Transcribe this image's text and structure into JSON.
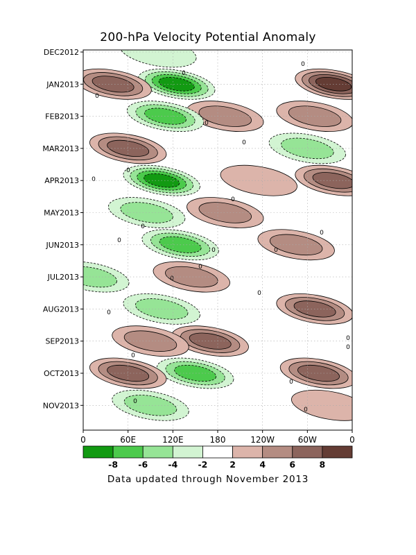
{
  "chart_data": {
    "type": "heatmap",
    "title": "200-hPa Velocity Potential Anomaly",
    "footer": "Data updated through November 2013",
    "x_ticks": [
      "0",
      "60E",
      "120E",
      "180",
      "120W",
      "60W",
      "0"
    ],
    "x_range_deg_east": [
      0,
      360
    ],
    "y_ticks": [
      "DEC2012",
      "JAN2013",
      "FEB2013",
      "MAR2013",
      "APR2013",
      "MAY2013",
      "JUN2013",
      "JUL2013",
      "AUG2013",
      "SEP2013",
      "OCT2013",
      "NOV2013"
    ],
    "grid": true,
    "contour_label": "0",
    "legend": {
      "placement": "bottom",
      "bins": [
        {
          "range": "< -8",
          "color": "#129a12"
        },
        {
          "range": "-8 to -6",
          "color": "#4cca4c"
        },
        {
          "range": "-6 to -4",
          "color": "#96e496"
        },
        {
          "range": "-4 to -2",
          "color": "#d2f4d2"
        },
        {
          "range": "-2 to 2",
          "color": "#ffffff"
        },
        {
          "range": "2 to 4",
          "color": "#dcb4aa"
        },
        {
          "range": "4 to 6",
          "color": "#b48c82"
        },
        {
          "range": "6 to 8",
          "color": "#8c645c"
        },
        {
          "range": "> 8",
          "color": "#643c34"
        }
      ],
      "labels": [
        "-8",
        "-6",
        "-4",
        "-2",
        "2",
        "4",
        "6",
        "8"
      ]
    },
    "anomaly_features": [
      {
        "month": "DEC2012",
        "lon_center": 100,
        "value": -3
      },
      {
        "month": "JAN2013",
        "lon_center": 125,
        "value": -9
      },
      {
        "month": "JAN2013",
        "lon_center": 335,
        "value": 8
      },
      {
        "month": "JAN2013",
        "lon_center": 40,
        "value": 6
      },
      {
        "month": "FEB2013",
        "lon_center": 190,
        "value": 4
      },
      {
        "month": "FEB2013",
        "lon_center": 310,
        "value": 4
      },
      {
        "month": "FEB2013",
        "lon_center": 110,
        "value": -6
      },
      {
        "month": "MAR2013",
        "lon_center": 60,
        "value": 6
      },
      {
        "month": "MAR2013",
        "lon_center": 300,
        "value": -4
      },
      {
        "month": "APR2013",
        "lon_center": 105,
        "value": -9
      },
      {
        "month": "APR2013",
        "lon_center": 335,
        "value": 7
      },
      {
        "month": "APR2013",
        "lon_center": 235,
        "value": 2
      },
      {
        "month": "MAY2013",
        "lon_center": 190,
        "value": 5
      },
      {
        "month": "MAY2013",
        "lon_center": 85,
        "value": -5
      },
      {
        "month": "JUN2013",
        "lon_center": 130,
        "value": -7
      },
      {
        "month": "JUN2013",
        "lon_center": 285,
        "value": 5
      },
      {
        "month": "JUL2013",
        "lon_center": 10,
        "value": -5
      },
      {
        "month": "JUL2013",
        "lon_center": 145,
        "value": 5
      },
      {
        "month": "AUG2013",
        "lon_center": 310,
        "value": 6
      },
      {
        "month": "AUG2013",
        "lon_center": 105,
        "value": -4
      },
      {
        "month": "SEP2013",
        "lon_center": 170,
        "value": 7
      },
      {
        "month": "SEP2013",
        "lon_center": 90,
        "value": 4
      },
      {
        "month": "OCT2013",
        "lon_center": 150,
        "value": -6
      },
      {
        "month": "OCT2013",
        "lon_center": 60,
        "value": 6
      },
      {
        "month": "OCT2013",
        "lon_center": 315,
        "value": 6
      },
      {
        "month": "NOV2013",
        "lon_center": 90,
        "value": -4
      },
      {
        "month": "NOV2013",
        "lon_center": 330,
        "value": 2
      }
    ]
  }
}
